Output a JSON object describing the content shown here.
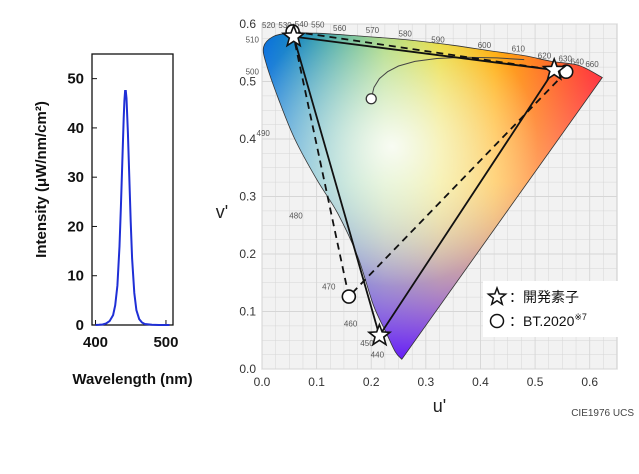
{
  "chart_data": [
    {
      "type": "line",
      "title": "",
      "xlabel": "Wavelength (nm)",
      "ylabel": "Intensity (μW/nm/cm²)",
      "xlim": [
        395,
        510
      ],
      "ylim": [
        0,
        55
      ],
      "x_ticks": [
        "400",
        "500"
      ],
      "y_ticks": [
        "0",
        "10",
        "20",
        "30",
        "40",
        "50"
      ],
      "grid": false,
      "color": "#1f2fd6",
      "series": [
        {
          "x": [
            400,
            405,
            410,
            415,
            420,
            425,
            428,
            431,
            434,
            436,
            438,
            440,
            441,
            442,
            443,
            444,
            446,
            448,
            450,
            452,
            455,
            458,
            462,
            466,
            470,
            480,
            490,
            500,
            505
          ],
          "y": [
            0,
            0.05,
            0.1,
            0.3,
            0.8,
            2,
            4,
            8,
            16,
            24,
            33,
            42,
            45.5,
            47.5,
            47.5,
            46,
            39,
            30,
            21,
            13.5,
            6.5,
            3,
            1.2,
            0.5,
            0.2,
            0.05,
            0,
            0,
            0
          ]
        }
      ]
    },
    {
      "type": "scatter",
      "title": "",
      "xlabel": "u'",
      "ylabel": "v'",
      "xlim": [
        0,
        0.65
      ],
      "ylim": [
        0,
        0.6
      ],
      "x_ticks": [
        "0.0",
        "0.1",
        "0.2",
        "0.3",
        "0.4",
        "0.5",
        "0.6"
      ],
      "y_ticks": [
        "0.0",
        "0.1",
        "0.2",
        "0.3",
        "0.4",
        "0.5",
        "0.6"
      ],
      "grid": true,
      "footer": "CIE1976 UCS",
      "locus": [
        [
          0.256,
          0.017
        ],
        [
          0.244,
          0.03
        ],
        [
          0.226,
          0.066
        ],
        [
          0.204,
          0.111
        ],
        [
          0.175,
          0.196
        ],
        [
          0.139,
          0.27
        ],
        [
          0.1,
          0.33
        ],
        [
          0.06,
          0.4
        ],
        [
          0.03,
          0.47
        ],
        [
          0.008,
          0.53
        ],
        [
          0.003,
          0.56
        ],
        [
          0.02,
          0.578
        ],
        [
          0.05,
          0.584
        ],
        [
          0.1,
          0.584
        ],
        [
          0.165,
          0.58
        ],
        [
          0.26,
          0.573
        ],
        [
          0.35,
          0.563
        ],
        [
          0.42,
          0.553
        ],
        [
          0.48,
          0.545
        ],
        [
          0.53,
          0.535
        ],
        [
          0.58,
          0.528
        ],
        [
          0.623,
          0.507
        ]
      ],
      "wavelength_labels": [
        {
          "t": "510",
          "u": -0.03,
          "v": 0.568
        },
        {
          "t": "500",
          "u": -0.03,
          "v": 0.512
        },
        {
          "t": "490",
          "u": -0.01,
          "v": 0.405
        },
        {
          "t": "480",
          "u": 0.05,
          "v": 0.262
        },
        {
          "t": "470",
          "u": 0.11,
          "v": 0.138
        },
        {
          "t": "460",
          "u": 0.15,
          "v": 0.074
        },
        {
          "t": "450",
          "u": 0.18,
          "v": 0.04
        },
        {
          "t": "440",
          "u": 0.199,
          "v": 0.02
        },
        {
          "t": "520",
          "u": 0.0,
          "v": 0.593
        },
        {
          "t": "530",
          "u": 0.03,
          "v": 0.593
        },
        {
          "t": "540",
          "u": 0.06,
          "v": 0.595
        },
        {
          "t": "550",
          "u": 0.09,
          "v": 0.594
        },
        {
          "t": "560",
          "u": 0.13,
          "v": 0.588
        },
        {
          "t": "570",
          "u": 0.19,
          "v": 0.584
        },
        {
          "t": "580",
          "u": 0.25,
          "v": 0.578
        },
        {
          "t": "590",
          "u": 0.31,
          "v": 0.568
        },
        {
          "t": "600",
          "u": 0.395,
          "v": 0.558
        },
        {
          "t": "610",
          "u": 0.457,
          "v": 0.552
        },
        {
          "t": "620",
          "u": 0.505,
          "v": 0.54
        },
        {
          "t": "630",
          "u": 0.543,
          "v": 0.535
        },
        {
          "t": "640",
          "u": 0.565,
          "v": 0.53
        },
        {
          "t": "660",
          "u": 0.592,
          "v": 0.525
        }
      ],
      "planckian": [
        [
          0.2,
          0.47
        ],
        [
          0.205,
          0.49
        ],
        [
          0.215,
          0.505
        ],
        [
          0.23,
          0.517
        ],
        [
          0.25,
          0.527
        ],
        [
          0.28,
          0.535
        ],
        [
          0.32,
          0.54
        ],
        [
          0.37,
          0.542
        ],
        [
          0.43,
          0.541
        ],
        [
          0.48,
          0.538
        ]
      ],
      "gamut_device": [
        [
          0.058,
          0.578
        ],
        [
          0.215,
          0.058
        ],
        [
          0.535,
          0.52
        ]
      ],
      "gamut_bt2020": [
        [
          0.056,
          0.587
        ],
        [
          0.159,
          0.126
        ],
        [
          0.557,
          0.517
        ]
      ],
      "legend": [
        {
          "marker": "star",
          "label": "：開発素子"
        },
        {
          "marker": "circle",
          "label": "：BT.2020",
          "sup": "※7"
        }
      ],
      "legend_position": "lower-right"
    }
  ]
}
